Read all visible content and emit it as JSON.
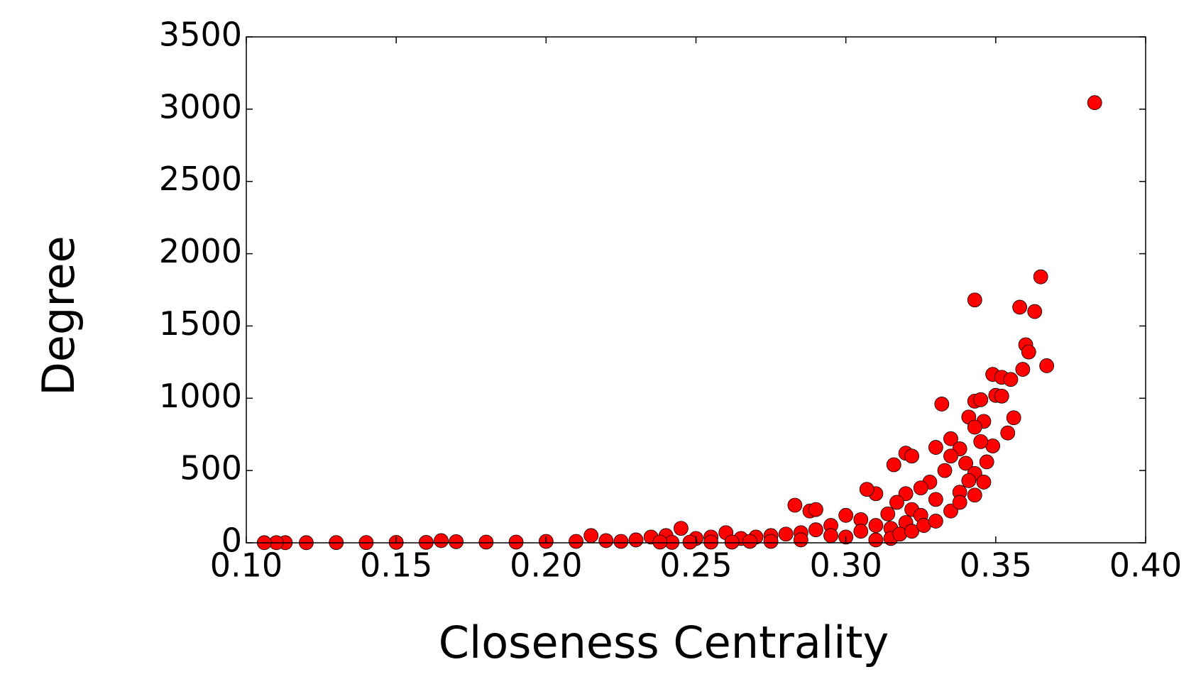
{
  "chart_data": {
    "type": "scatter",
    "xlabel": "Closeness Centrality",
    "ylabel": "Degree",
    "color": "#ff0000",
    "edgecolor": "#000000",
    "xlim": [
      0.1,
      0.4
    ],
    "ylim": [
      0,
      3500
    ],
    "xticks": [
      {
        "value": 0.1,
        "label": "0.10"
      },
      {
        "value": 0.15,
        "label": "0.15"
      },
      {
        "value": 0.2,
        "label": "0.20"
      },
      {
        "value": 0.25,
        "label": "0.25"
      },
      {
        "value": 0.3,
        "label": "0.30"
      },
      {
        "value": 0.35,
        "label": "0.35"
      },
      {
        "value": 0.4,
        "label": "0.40"
      }
    ],
    "yticks": [
      0,
      500,
      1000,
      1500,
      2000,
      2500,
      3000,
      3500
    ],
    "x": [
      0.383,
      0.365,
      0.343,
      0.358,
      0.363,
      0.36,
      0.361,
      0.367,
      0.359,
      0.349,
      0.352,
      0.355,
      0.35,
      0.352,
      0.332,
      0.343,
      0.345,
      0.356,
      0.341,
      0.346,
      0.343,
      0.354,
      0.349,
      0.335,
      0.33,
      0.345,
      0.32,
      0.322,
      0.316,
      0.338,
      0.335,
      0.34,
      0.343,
      0.341,
      0.338,
      0.333,
      0.328,
      0.325,
      0.32,
      0.33,
      0.31,
      0.307,
      0.317,
      0.322,
      0.314,
      0.283,
      0.288,
      0.29,
      0.3,
      0.305,
      0.31,
      0.315,
      0.32,
      0.325,
      0.295,
      0.29,
      0.285,
      0.28,
      0.275,
      0.27,
      0.265,
      0.26,
      0.255,
      0.25,
      0.245,
      0.24,
      0.235,
      0.23,
      0.225,
      0.22,
      0.215,
      0.21,
      0.2,
      0.19,
      0.18,
      0.17,
      0.165,
      0.16,
      0.15,
      0.14,
      0.13,
      0.12,
      0.113,
      0.11,
      0.106,
      0.3,
      0.305,
      0.31,
      0.315,
      0.318,
      0.322,
      0.326,
      0.33,
      0.335,
      0.338,
      0.343,
      0.346,
      0.347,
      0.295,
      0.285,
      0.275,
      0.268,
      0.262,
      0.255,
      0.248,
      0.242,
      0.238
    ],
    "y": [
      3045,
      1840,
      1680,
      1630,
      1600,
      1370,
      1320,
      1225,
      1200,
      1165,
      1145,
      1130,
      1020,
      1015,
      960,
      980,
      990,
      865,
      870,
      840,
      800,
      760,
      670,
      720,
      660,
      700,
      620,
      600,
      540,
      650,
      600,
      550,
      480,
      430,
      350,
      500,
      420,
      380,
      340,
      300,
      340,
      370,
      280,
      230,
      200,
      260,
      220,
      230,
      190,
      160,
      120,
      100,
      140,
      190,
      120,
      90,
      70,
      60,
      50,
      40,
      30,
      70,
      40,
      30,
      100,
      50,
      40,
      20,
      10,
      15,
      50,
      10,
      10,
      5,
      5,
      8,
      15,
      3,
      3,
      2,
      2,
      1,
      1,
      1,
      1,
      40,
      80,
      20,
      30,
      60,
      80,
      120,
      150,
      220,
      280,
      330,
      420,
      560,
      50,
      20,
      10,
      10,
      5,
      5,
      5,
      3,
      5
    ]
  }
}
